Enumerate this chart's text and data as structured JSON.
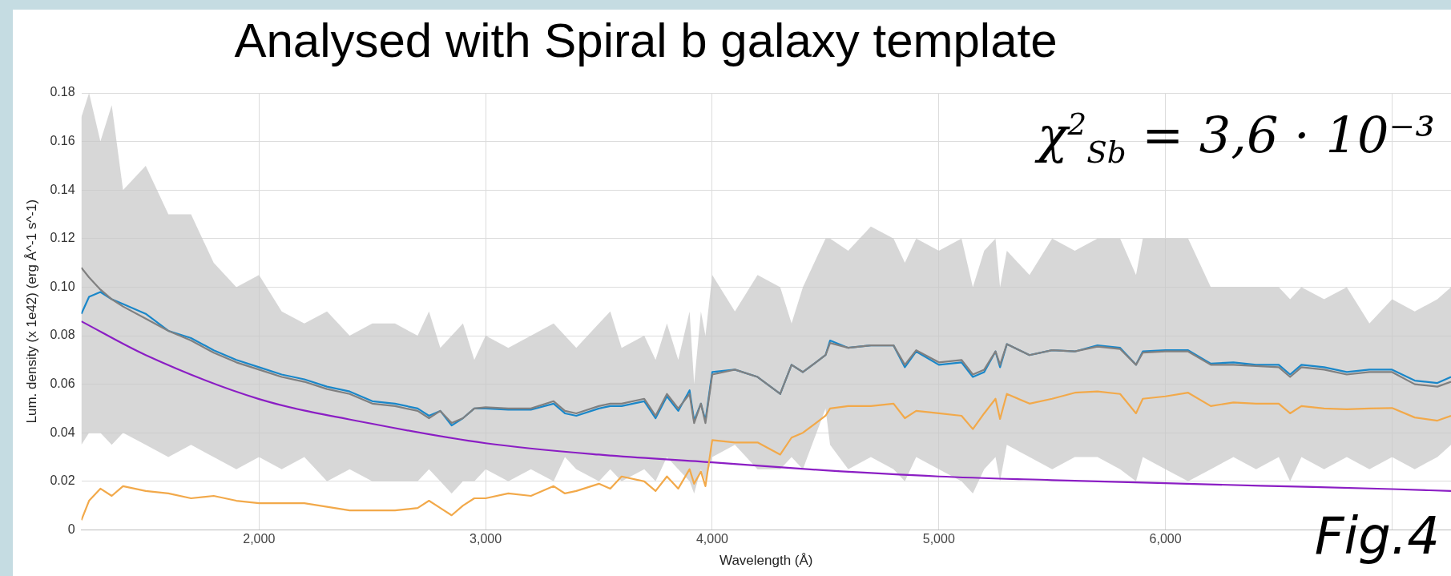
{
  "chart_data": {
    "type": "line",
    "title": "Analysed with Spiral b galaxy template",
    "xlabel": "Wavelength (Å)",
    "ylabel": "Lum. density (x 1e42) (erg Å^-1 s^-1)",
    "annotations": [
      "χ$^{2}$$_{Sb}$ = 3,6 · 10⁻³",
      "Fig.4"
    ],
    "x": [
      1216,
      1250,
      1300,
      1350,
      1400,
      1500,
      1600,
      1700,
      1800,
      1900,
      2000,
      2100,
      2200,
      2300,
      2400,
      2500,
      2600,
      2700,
      2750,
      2800,
      2850,
      2900,
      2950,
      3000,
      3100,
      3200,
      3300,
      3350,
      3400,
      3500,
      3550,
      3600,
      3700,
      3750,
      3800,
      3850,
      3900,
      3920,
      3950,
      3970,
      4000,
      4100,
      4200,
      4300,
      4350,
      4400,
      4500,
      4520,
      4600,
      4700,
      4800,
      4850,
      4900,
      5000,
      5100,
      5150,
      5200,
      5250,
      5270,
      5300,
      5400,
      5500,
      5600,
      5700,
      5800,
      5870,
      5900,
      6000,
      6100,
      6200,
      6300,
      6400,
      6500,
      6550,
      6600,
      6700,
      6800,
      6900,
      7000,
      7100,
      7200,
      7260
    ],
    "series": [
      {
        "color": "#1a87c9",
        "values": [
          0.089,
          0.096,
          0.098,
          0.095,
          0.093,
          0.089,
          0.082,
          0.079,
          0.074,
          0.07,
          0.067,
          0.064,
          0.062,
          0.059,
          0.057,
          0.053,
          0.052,
          0.05,
          0.047,
          0.049,
          0.043,
          0.046,
          0.05,
          0.05,
          0.0495,
          0.0495,
          0.052,
          0.048,
          0.047,
          0.05,
          0.051,
          0.051,
          0.053,
          0.046,
          0.055,
          0.049,
          0.0575,
          0.045,
          0.052,
          0.045,
          0.065,
          0.066,
          0.063,
          0.056,
          0.068,
          0.065,
          0.072,
          0.078,
          0.075,
          0.076,
          0.076,
          0.067,
          0.0735,
          0.068,
          0.069,
          0.063,
          0.065,
          0.0735,
          0.067,
          0.0765,
          0.072,
          0.074,
          0.0735,
          0.076,
          0.075,
          0.068,
          0.0735,
          0.074,
          0.074,
          0.0685,
          0.069,
          0.068,
          0.068,
          0.064,
          0.068,
          0.067,
          0.065,
          0.066,
          0.066,
          0.0615,
          0.0605,
          0.063
        ],
        "upper": [
          0.17,
          0.18,
          0.16,
          0.175,
          0.14,
          0.15,
          0.13,
          0.13,
          0.11,
          0.1,
          0.105,
          0.09,
          0.085,
          0.09,
          0.08,
          0.085,
          0.085,
          0.08,
          0.09,
          0.075,
          0.08,
          0.085,
          0.07,
          0.08,
          0.075,
          0.08,
          0.085,
          0.08,
          0.075,
          0.085,
          0.09,
          0.075,
          0.08,
          0.07,
          0.085,
          0.07,
          0.09,
          0.06,
          0.09,
          0.08,
          0.105,
          0.09,
          0.105,
          0.1,
          0.085,
          0.1,
          0.12,
          0.12,
          0.115,
          0.125,
          0.12,
          0.11,
          0.12,
          0.115,
          0.12,
          0.1,
          0.115,
          0.12,
          0.1,
          0.115,
          0.105,
          0.12,
          0.115,
          0.12,
          0.12,
          0.105,
          0.12,
          0.12,
          0.12,
          0.1,
          0.1,
          0.1,
          0.1,
          0.095,
          0.1,
          0.095,
          0.1,
          0.085,
          0.095,
          0.09,
          0.095,
          0.1
        ],
        "lower": [
          0.035,
          0.04,
          0.04,
          0.035,
          0.04,
          0.035,
          0.03,
          0.035,
          0.03,
          0.025,
          0.03,
          0.025,
          0.03,
          0.02,
          0.025,
          0.02,
          0.02,
          0.02,
          0.025,
          0.02,
          0.015,
          0.02,
          0.02,
          0.025,
          0.02,
          0.025,
          0.02,
          0.03,
          0.025,
          0.02,
          0.025,
          0.02,
          0.025,
          0.02,
          0.03,
          0.025,
          0.02,
          0.015,
          0.025,
          0.02,
          0.03,
          0.035,
          0.025,
          0.025,
          0.03,
          0.025,
          0.05,
          0.035,
          0.025,
          0.03,
          0.025,
          0.02,
          0.03,
          0.025,
          0.02,
          0.015,
          0.025,
          0.03,
          0.02,
          0.035,
          0.03,
          0.025,
          0.03,
          0.03,
          0.025,
          0.02,
          0.03,
          0.025,
          0.02,
          0.025,
          0.03,
          0.025,
          0.03,
          0.02,
          0.03,
          0.025,
          0.03,
          0.025,
          0.03,
          0.025,
          0.03,
          0.035
        ]
      },
      {
        "color": "#808080",
        "values": [
          0.108,
          0.104,
          0.099,
          0.095,
          0.092,
          0.087,
          0.082,
          0.078,
          0.073,
          0.069,
          0.066,
          0.063,
          0.061,
          0.058,
          0.056,
          0.052,
          0.051,
          0.049,
          0.046,
          0.049,
          0.044,
          0.046,
          0.05,
          0.0505,
          0.05,
          0.05,
          0.053,
          0.049,
          0.048,
          0.051,
          0.052,
          0.052,
          0.054,
          0.047,
          0.056,
          0.05,
          0.056,
          0.044,
          0.052,
          0.044,
          0.064,
          0.066,
          0.063,
          0.056,
          0.068,
          0.065,
          0.072,
          0.077,
          0.075,
          0.076,
          0.076,
          0.068,
          0.074,
          0.069,
          0.07,
          0.064,
          0.066,
          0.0735,
          0.068,
          0.0765,
          0.072,
          0.074,
          0.0735,
          0.0755,
          0.0745,
          0.068,
          0.073,
          0.0735,
          0.0735,
          0.068,
          0.068,
          0.0675,
          0.067,
          0.063,
          0.067,
          0.066,
          0.064,
          0.065,
          0.065,
          0.06,
          0.059,
          0.061
        ]
      },
      {
        "color": "#8b1ec4",
        "x": [
          1216,
          1500,
          2000,
          2500,
          3000,
          3500,
          4000,
          4500,
          5000,
          5500,
          6000,
          6500,
          7000,
          7260
        ],
        "values": [
          0.0859,
          0.072,
          0.0539,
          0.0437,
          0.0357,
          0.031,
          0.0278,
          0.0245,
          0.022,
          0.0205,
          0.0192,
          0.018,
          0.0168,
          0.016
        ]
      },
      {
        "color": "#f2a94a",
        "values": [
          0.004,
          0.012,
          0.017,
          0.014,
          0.018,
          0.016,
          0.015,
          0.013,
          0.014,
          0.012,
          0.011,
          0.011,
          0.011,
          0.0095,
          0.008,
          0.008,
          0.008,
          0.009,
          0.012,
          0.009,
          0.006,
          0.01,
          0.013,
          0.013,
          0.015,
          0.014,
          0.018,
          0.015,
          0.016,
          0.019,
          0.017,
          0.022,
          0.02,
          0.016,
          0.022,
          0.017,
          0.025,
          0.019,
          0.024,
          0.018,
          0.037,
          0.036,
          0.036,
          0.031,
          0.038,
          0.04,
          0.047,
          0.05,
          0.051,
          0.051,
          0.052,
          0.046,
          0.049,
          0.048,
          0.047,
          0.0415,
          0.048,
          0.054,
          0.0457,
          0.056,
          0.052,
          0.054,
          0.0565,
          0.057,
          0.056,
          0.048,
          0.054,
          0.055,
          0.0565,
          0.051,
          0.0525,
          0.052,
          0.052,
          0.048,
          0.051,
          0.05,
          0.0497,
          0.05,
          0.0502,
          0.0463,
          0.045,
          0.047
        ]
      }
    ],
    "xlim": [
      1216,
      7260
    ],
    "xticks": [
      {
        "value": 2000,
        "label": "2,000"
      },
      {
        "value": 3000,
        "label": "3,000"
      },
      {
        "value": 4000,
        "label": "4,000"
      },
      {
        "value": 5000,
        "label": "5,000"
      },
      {
        "value": 6000,
        "label": "6,000"
      },
      {
        "value": 7000,
        "label": null
      }
    ],
    "ylim": [
      0,
      0.18
    ],
    "yticks": [
      0,
      0.02,
      0.04,
      0.06,
      0.08,
      {
        "value": 0.1,
        "label": "0.10"
      },
      0.12,
      0.14,
      0.16,
      0.18
    ],
    "grid": true,
    "legend": false,
    "marker": "none",
    "line_style": "solid"
  }
}
